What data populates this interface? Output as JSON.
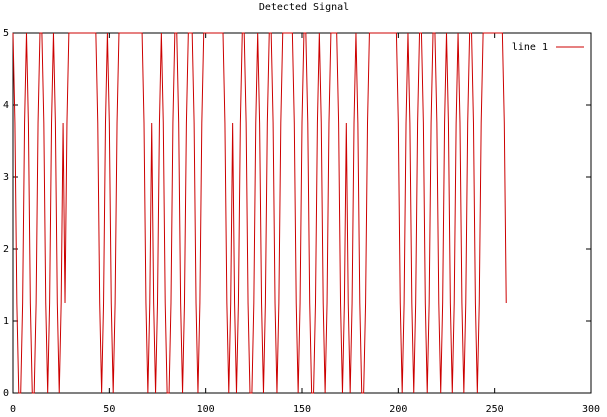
{
  "chart_data": {
    "type": "line",
    "title": "Detected Signal",
    "x": [
      0,
      1,
      2,
      3,
      4,
      5,
      6,
      7,
      8,
      9,
      10,
      11,
      12,
      13,
      14,
      15,
      16,
      17,
      18,
      19,
      20,
      21,
      22,
      23,
      24,
      25,
      26,
      27,
      28,
      29,
      30,
      31,
      32,
      33,
      34,
      35,
      36,
      37,
      38,
      39,
      40,
      41,
      42,
      43,
      44,
      45,
      46,
      47,
      48,
      49,
      50,
      51,
      52,
      53,
      54,
      55,
      56,
      57,
      58,
      59,
      60,
      61,
      62,
      63,
      64,
      65,
      66,
      67,
      68,
      69,
      70,
      71,
      72,
      73,
      74,
      75,
      76,
      77,
      78,
      79,
      80,
      81,
      82,
      83,
      84,
      85,
      86,
      87,
      88,
      89,
      90,
      91,
      92,
      93,
      94,
      95,
      96,
      97,
      98,
      99,
      100,
      101,
      102,
      103,
      104,
      105,
      106,
      107,
      108,
      109,
      110,
      111,
      112,
      113,
      114,
      115,
      116,
      117,
      118,
      119,
      120,
      121,
      122,
      123,
      124,
      125,
      126,
      127,
      128,
      129,
      130,
      131,
      132,
      133,
      134,
      135,
      136,
      137,
      138,
      139,
      140,
      141,
      142,
      143,
      144,
      145,
      146,
      147,
      148,
      149,
      150,
      151,
      152,
      153,
      154,
      155,
      156,
      157,
      158,
      159,
      160,
      161,
      162,
      163,
      164,
      165,
      166,
      167,
      168,
      169,
      170,
      171,
      172,
      173,
      174,
      175,
      176,
      177,
      178,
      179,
      180,
      181,
      182,
      183,
      184,
      185,
      186,
      187,
      188,
      189,
      190,
      191,
      192,
      193,
      194,
      195,
      196,
      197,
      198,
      199,
      200,
      201,
      202,
      203,
      204,
      205,
      206,
      207,
      208,
      209,
      210,
      211,
      212,
      213,
      214,
      215,
      216,
      217,
      218,
      219,
      220,
      221,
      222,
      223,
      224,
      225,
      226,
      227,
      228,
      229,
      230,
      231,
      232,
      233,
      234,
      235,
      236,
      237,
      238,
      239,
      240,
      241,
      242,
      243,
      244,
      245,
      246,
      247,
      248,
      249,
      250,
      251,
      252,
      253,
      254,
      255,
      256
    ],
    "series": [
      {
        "name": "line 1",
        "color": "#cc0000",
        "values": [
          5,
          3.75,
          1.25,
          0,
          0,
          1.25,
          3.75,
          5,
          3.75,
          1.25,
          0,
          0,
          1.25,
          3.75,
          5,
          5,
          3.75,
          1.25,
          0,
          1.25,
          3.75,
          5,
          3.75,
          1.25,
          0,
          1.25,
          3.75,
          1.25,
          3.75,
          5,
          5,
          5,
          5,
          5,
          5,
          5,
          5,
          5,
          5,
          5,
          5,
          5,
          5,
          5,
          3.75,
          1.25,
          0,
          1.25,
          3.75,
          5,
          3.75,
          1.25,
          0,
          1.25,
          3.75,
          5,
          5,
          5,
          5,
          5,
          5,
          5,
          5,
          5,
          5,
          5,
          5,
          5,
          3.75,
          1.25,
          0,
          1.25,
          3.75,
          1.25,
          0,
          1.25,
          3.75,
          5,
          3.75,
          1.25,
          0,
          0,
          1.25,
          3.75,
          5,
          5,
          3.75,
          1.25,
          0,
          1.25,
          3.75,
          5,
          5,
          5,
          3.75,
          1.25,
          0,
          1.25,
          3.75,
          5,
          5,
          5,
          5,
          5,
          5,
          5,
          5,
          5,
          5,
          5,
          3.75,
          1.25,
          0,
          1.25,
          3.75,
          1.25,
          0,
          1.25,
          3.75,
          5,
          5,
          3.75,
          1.25,
          0,
          0,
          1.25,
          3.75,
          5,
          3.75,
          1.25,
          0,
          1.25,
          3.75,
          5,
          5,
          3.75,
          1.25,
          0,
          1.25,
          3.75,
          5,
          5,
          5,
          5,
          5,
          5,
          3.75,
          1.25,
          0,
          1.25,
          3.75,
          5,
          5,
          3.75,
          1.25,
          0,
          0,
          1.25,
          3.75,
          5,
          3.75,
          1.25,
          0,
          1.25,
          3.75,
          5,
          5,
          5,
          5,
          3.75,
          1.25,
          0,
          1.25,
          3.75,
          1.25,
          0,
          1.25,
          3.75,
          5,
          3.75,
          1.25,
          0,
          0,
          1.25,
          3.75,
          5,
          5,
          5,
          5,
          5,
          5,
          5,
          5,
          5,
          5,
          5,
          5,
          5,
          5,
          5,
          3.75,
          1.25,
          0,
          1.25,
          3.75,
          5,
          3.75,
          1.25,
          0,
          1.25,
          3.75,
          5,
          5,
          3.75,
          1.25,
          0,
          1.25,
          3.75,
          5,
          5,
          3.75,
          1.25,
          0,
          1.25,
          3.75,
          5,
          3.75,
          1.25,
          0,
          1.25,
          3.75,
          5,
          3.75,
          1.25,
          0,
          1.25,
          3.75,
          5,
          5,
          3.75,
          1.25,
          0,
          1.25,
          3.75,
          5,
          5,
          5,
          5,
          5,
          5,
          5,
          5,
          5,
          5,
          5,
          3.75,
          1.25
        ]
      }
    ],
    "xlim": [
      0,
      300
    ],
    "xticks": [
      0,
      50,
      100,
      150,
      200,
      250,
      300
    ],
    "ylim": [
      0,
      5
    ],
    "yticks": [
      0,
      1,
      2,
      3,
      4,
      5
    ],
    "legend": "top-right"
  }
}
